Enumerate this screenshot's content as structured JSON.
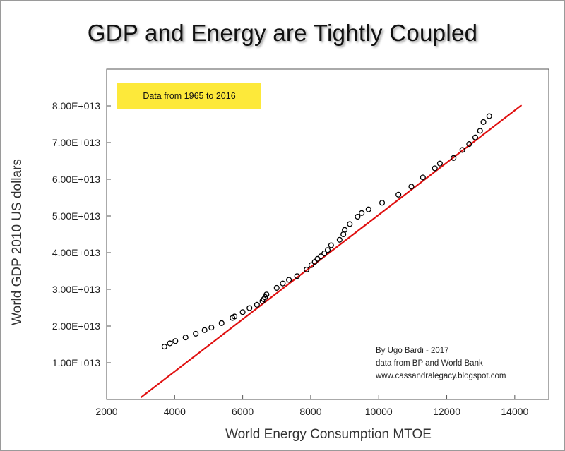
{
  "title": "GDP and Energy are Tightly Coupled",
  "colors": {
    "fit_line": "#e01010",
    "points": "#000000",
    "tag_bg": "#fde93a"
  },
  "chart_data": {
    "type": "scatter",
    "title": "GDP and Energy are Tightly Coupled",
    "xlabel": "World Energy Consumption MTOE",
    "ylabel": "World GDP 2010 US dollars",
    "xlim": [
      2000,
      15000
    ],
    "ylim": [
      0,
      90000000000000.0
    ],
    "x_ticks": [
      2000,
      4000,
      6000,
      8000,
      10000,
      12000,
      14000
    ],
    "x_tick_labels": [
      "2000",
      "4000",
      "6000",
      "8000",
      "10000",
      "12000",
      "14000"
    ],
    "y_ticks": [
      10000000000000.0,
      20000000000000.0,
      30000000000000.0,
      40000000000000.0,
      50000000000000.0,
      60000000000000.0,
      70000000000000.0,
      80000000000000.0
    ],
    "y_tick_labels": [
      "1.00E+013",
      "2.00E+013",
      "3.00E+013",
      "4.00E+013",
      "5.00E+013",
      "6.00E+013",
      "7.00E+013",
      "8.00E+013"
    ],
    "grid": false,
    "series": [
      {
        "kind": "points",
        "x": [
          3700,
          3860,
          4020,
          4320,
          4620,
          4880,
          5080,
          5380,
          5700,
          5760,
          6000,
          6200,
          6420,
          6580,
          6620,
          6660,
          6700,
          7000,
          7180,
          7360,
          7600,
          7880,
          8020,
          8120,
          8200,
          8300,
          8400,
          8500,
          8600,
          8850,
          8960,
          9000,
          9150,
          9380,
          9500,
          9700,
          10100,
          10580,
          10960,
          11300,
          11650,
          11800,
          12200,
          12460,
          12660,
          12840,
          12980,
          13080,
          13250
        ],
        "y": [
          14400000000000.0,
          15300000000000.0,
          15900000000000.0,
          16900000000000.0,
          17900000000000.0,
          18900000000000.0,
          19600000000000.0,
          20800000000000.0,
          22200000000000.0,
          22600000000000.0,
          23800000000000.0,
          24900000000000.0,
          25800000000000.0,
          26800000000000.0,
          27300000000000.0,
          27900000000000.0,
          28600000000000.0,
          30400000000000.0,
          31600000000000.0,
          32600000000000.0,
          33600000000000.0,
          35400000000000.0,
          36600000000000.0,
          37500000000000.0,
          38300000000000.0,
          39000000000000.0,
          39800000000000.0,
          40700000000000.0,
          42000000000000.0,
          43500000000000.0,
          45000000000000.0,
          46200000000000.0,
          47800000000000.0,
          49800000000000.0,
          50800000000000.0,
          51800000000000.0,
          53600000000000.0,
          55800000000000.0,
          58000000000000.0,
          60500000000000.0,
          63000000000000.0,
          64300000000000.0,
          65800000000000.0,
          68000000000000.0,
          69600000000000.0,
          71400000000000.0,
          73200000000000.0,
          75600000000000.0,
          77200000000000.0
        ]
      },
      {
        "kind": "fit-line",
        "x": [
          3000,
          14200
        ],
        "y": [
          500000000000.0,
          80200000000000.0
        ]
      }
    ],
    "annotations": {
      "tag": "Data from 1965 to 2016",
      "credit": [
        "By Ugo Bardi - 2017",
        "data from BP and World Bank",
        "www.cassandralegacy.blogspot.com"
      ]
    }
  }
}
